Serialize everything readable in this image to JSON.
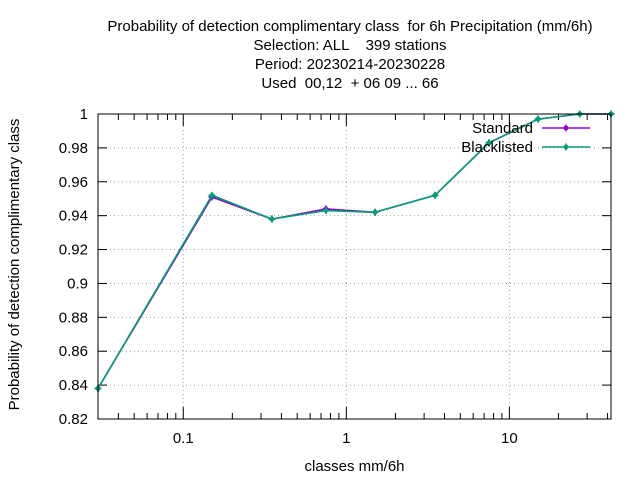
{
  "chart_data": {
    "type": "line",
    "title_lines": [
      "Probability of detection complimentary class  for 6h Precipitation (mm/6h)",
      "Selection: ALL    399 stations",
      "Period: 20230214-20230228",
      "Used  00,12  + 06 09 ... 66"
    ],
    "xlabel": "classes mm/6h",
    "ylabel": "Probability of detection complimentary class",
    "x_scale": "log",
    "xlim": [
      0.03,
      42
    ],
    "ylim": [
      0.82,
      1.0
    ],
    "x_tick_labels": [
      {
        "value": 0.1,
        "label": "0.1"
      },
      {
        "value": 1,
        "label": "1"
      },
      {
        "value": 10,
        "label": "10"
      }
    ],
    "y_ticks": [
      0.82,
      0.84,
      0.86,
      0.88,
      0.9,
      0.92,
      0.94,
      0.96,
      0.98,
      1.0
    ],
    "y_tick_labels": [
      "0.82",
      "0.84",
      "0.86",
      "0.88",
      "0.9",
      "0.92",
      "0.94",
      "0.96",
      "0.98",
      "1"
    ],
    "grid": true,
    "legend_position": "top-right",
    "series": [
      {
        "name": "Standard",
        "color": "#9400d3",
        "x": [
          0.03,
          0.15,
          0.35,
          0.75,
          1.5,
          3.5,
          7.5,
          15,
          27,
          42
        ],
        "values": [
          0.838,
          0.951,
          0.938,
          0.944,
          0.942,
          0.952,
          0.983,
          0.997,
          1.0,
          1.0
        ]
      },
      {
        "name": "Blacklisted",
        "color": "#009e73",
        "x": [
          0.03,
          0.15,
          0.35,
          0.75,
          1.5,
          3.5,
          7.5,
          15,
          27,
          42
        ],
        "values": [
          0.838,
          0.952,
          0.938,
          0.943,
          0.942,
          0.952,
          0.983,
          0.997,
          1.0,
          1.0
        ]
      }
    ]
  }
}
